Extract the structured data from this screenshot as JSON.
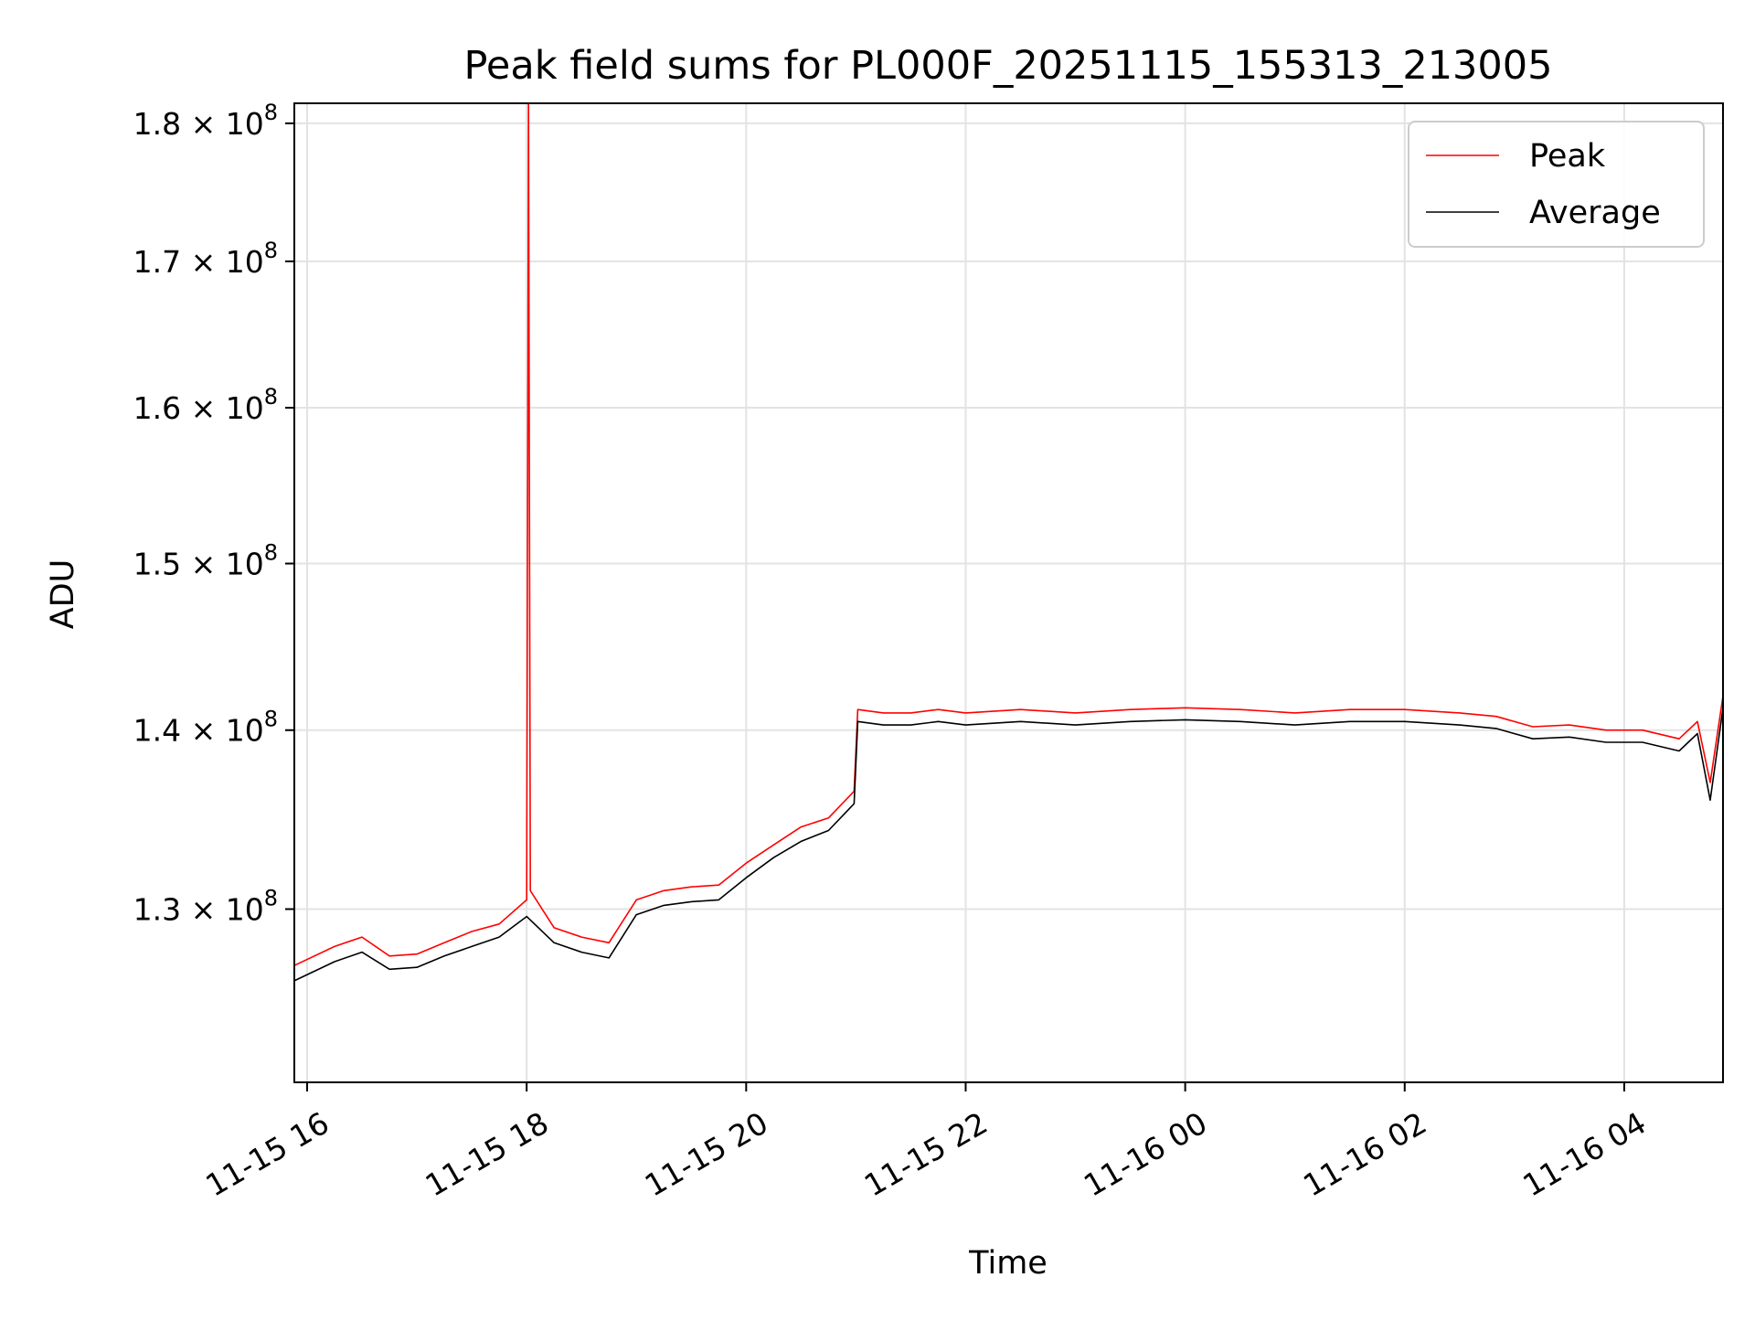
{
  "chart_data": {
    "type": "line",
    "title": "Peak field sums for PL000F_20251115_155313_213005",
    "xlabel": "Time",
    "ylabel": "ADU",
    "x_axis": {
      "type": "datetime",
      "range": [
        "2025-11-15 15:53",
        "2025-11-16 04:54"
      ],
      "ticks": [
        {
          "value": "2025-11-15 16:00",
          "label": "11-15 16"
        },
        {
          "value": "2025-11-15 18:00",
          "label": "11-15 18"
        },
        {
          "value": "2025-11-15 20:00",
          "label": "11-15 20"
        },
        {
          "value": "2025-11-15 22:00",
          "label": "11-15 22"
        },
        {
          "value": "2025-11-16 00:00",
          "label": "11-16 00"
        },
        {
          "value": "2025-11-16 02:00",
          "label": "11-16 02"
        },
        {
          "value": "2025-11-16 04:00",
          "label": "11-16 04"
        }
      ]
    },
    "y_axis": {
      "scale": "log",
      "range": [
        121000000,
        181500000
      ],
      "ticks": [
        {
          "value": 130000000,
          "label": "1.3 × 10^8",
          "mantissa": "1.3",
          "exponent": "8"
        },
        {
          "value": 140000000,
          "label": "1.4 × 10^8",
          "mantissa": "1.4",
          "exponent": "8"
        },
        {
          "value": 150000000,
          "label": "1.5 × 10^8",
          "mantissa": "1.5",
          "exponent": "8"
        },
        {
          "value": 160000000,
          "label": "1.6 × 10^8",
          "mantissa": "1.6",
          "exponent": "8"
        },
        {
          "value": 170000000,
          "label": "1.7 × 10^8",
          "mantissa": "1.7",
          "exponent": "8"
        },
        {
          "value": 180000000,
          "label": "1.8 × 10^8",
          "mantissa": "1.8",
          "exponent": "8"
        }
      ]
    },
    "grid": true,
    "legend_position": "top-right",
    "series": [
      {
        "name": "Peak",
        "color": "#ff0000",
        "x": [
          "2025-11-15 15:53",
          "2025-11-15 16:15",
          "2025-11-15 16:30",
          "2025-11-15 16:45",
          "2025-11-15 17:00",
          "2025-11-15 17:15",
          "2025-11-15 17:30",
          "2025-11-15 17:45",
          "2025-11-15 18:00",
          "2025-11-15 18:01",
          "2025-11-15 18:02",
          "2025-11-15 18:15",
          "2025-11-15 18:30",
          "2025-11-15 18:45",
          "2025-11-15 19:00",
          "2025-11-15 19:15",
          "2025-11-15 19:30",
          "2025-11-15 19:45",
          "2025-11-15 20:00",
          "2025-11-15 20:15",
          "2025-11-15 20:30",
          "2025-11-15 20:45",
          "2025-11-15 20:59",
          "2025-11-15 21:01",
          "2025-11-15 21:15",
          "2025-11-15 21:30",
          "2025-11-15 21:45",
          "2025-11-15 22:00",
          "2025-11-15 22:30",
          "2025-11-15 23:00",
          "2025-11-15 23:30",
          "2025-11-16 00:00",
          "2025-11-16 00:30",
          "2025-11-16 01:00",
          "2025-11-16 01:30",
          "2025-11-16 02:00",
          "2025-11-16 02:30",
          "2025-11-16 02:50",
          "2025-11-16 03:10",
          "2025-11-16 03:30",
          "2025-11-16 03:50",
          "2025-11-16 04:10",
          "2025-11-16 04:30",
          "2025-11-16 04:40",
          "2025-11-16 04:47",
          "2025-11-16 04:54"
        ],
        "values": [
          127000000,
          128000000,
          128500000,
          127500000,
          127600000,
          128200000,
          128800000,
          129200000,
          130500000,
          181500000,
          131000000,
          129000000,
          128500000,
          128200000,
          130500000,
          131000000,
          131200000,
          131300000,
          132500000,
          133500000,
          134500000,
          135000000,
          136500000,
          141200000,
          141000000,
          141000000,
          141200000,
          141000000,
          141200000,
          141000000,
          141200000,
          141300000,
          141200000,
          141000000,
          141200000,
          141200000,
          141000000,
          140800000,
          140200000,
          140300000,
          140000000,
          140000000,
          139500000,
          140500000,
          137000000,
          142000000
        ]
      },
      {
        "name": "Average",
        "color": "#000000",
        "x": [
          "2025-11-15 15:53",
          "2025-11-15 16:15",
          "2025-11-15 16:30",
          "2025-11-15 16:45",
          "2025-11-15 17:00",
          "2025-11-15 17:15",
          "2025-11-15 17:30",
          "2025-11-15 17:45",
          "2025-11-15 18:00",
          "2025-11-15 18:15",
          "2025-11-15 18:30",
          "2025-11-15 18:45",
          "2025-11-15 19:00",
          "2025-11-15 19:15",
          "2025-11-15 19:30",
          "2025-11-15 19:45",
          "2025-11-15 20:00",
          "2025-11-15 20:15",
          "2025-11-15 20:30",
          "2025-11-15 20:45",
          "2025-11-15 20:59",
          "2025-11-15 21:01",
          "2025-11-15 21:15",
          "2025-11-15 21:30",
          "2025-11-15 21:45",
          "2025-11-15 22:00",
          "2025-11-15 22:30",
          "2025-11-15 23:00",
          "2025-11-15 23:30",
          "2025-11-16 00:00",
          "2025-11-16 00:30",
          "2025-11-16 01:00",
          "2025-11-16 01:30",
          "2025-11-16 02:00",
          "2025-11-16 02:30",
          "2025-11-16 02:50",
          "2025-11-16 03:10",
          "2025-11-16 03:30",
          "2025-11-16 03:50",
          "2025-11-16 04:10",
          "2025-11-16 04:30",
          "2025-11-16 04:40",
          "2025-11-16 04:47",
          "2025-11-16 04:54"
        ],
        "values": [
          126200000,
          127200000,
          127700000,
          126800000,
          126900000,
          127500000,
          128000000,
          128500000,
          129600000,
          128200000,
          127700000,
          127400000,
          129700000,
          130200000,
          130400000,
          130500000,
          131700000,
          132800000,
          133700000,
          134300000,
          135800000,
          140500000,
          140300000,
          140300000,
          140500000,
          140300000,
          140500000,
          140300000,
          140500000,
          140600000,
          140500000,
          140300000,
          140500000,
          140500000,
          140300000,
          140100000,
          139500000,
          139600000,
          139300000,
          139300000,
          138800000,
          139800000,
          136000000,
          141300000
        ]
      }
    ]
  }
}
